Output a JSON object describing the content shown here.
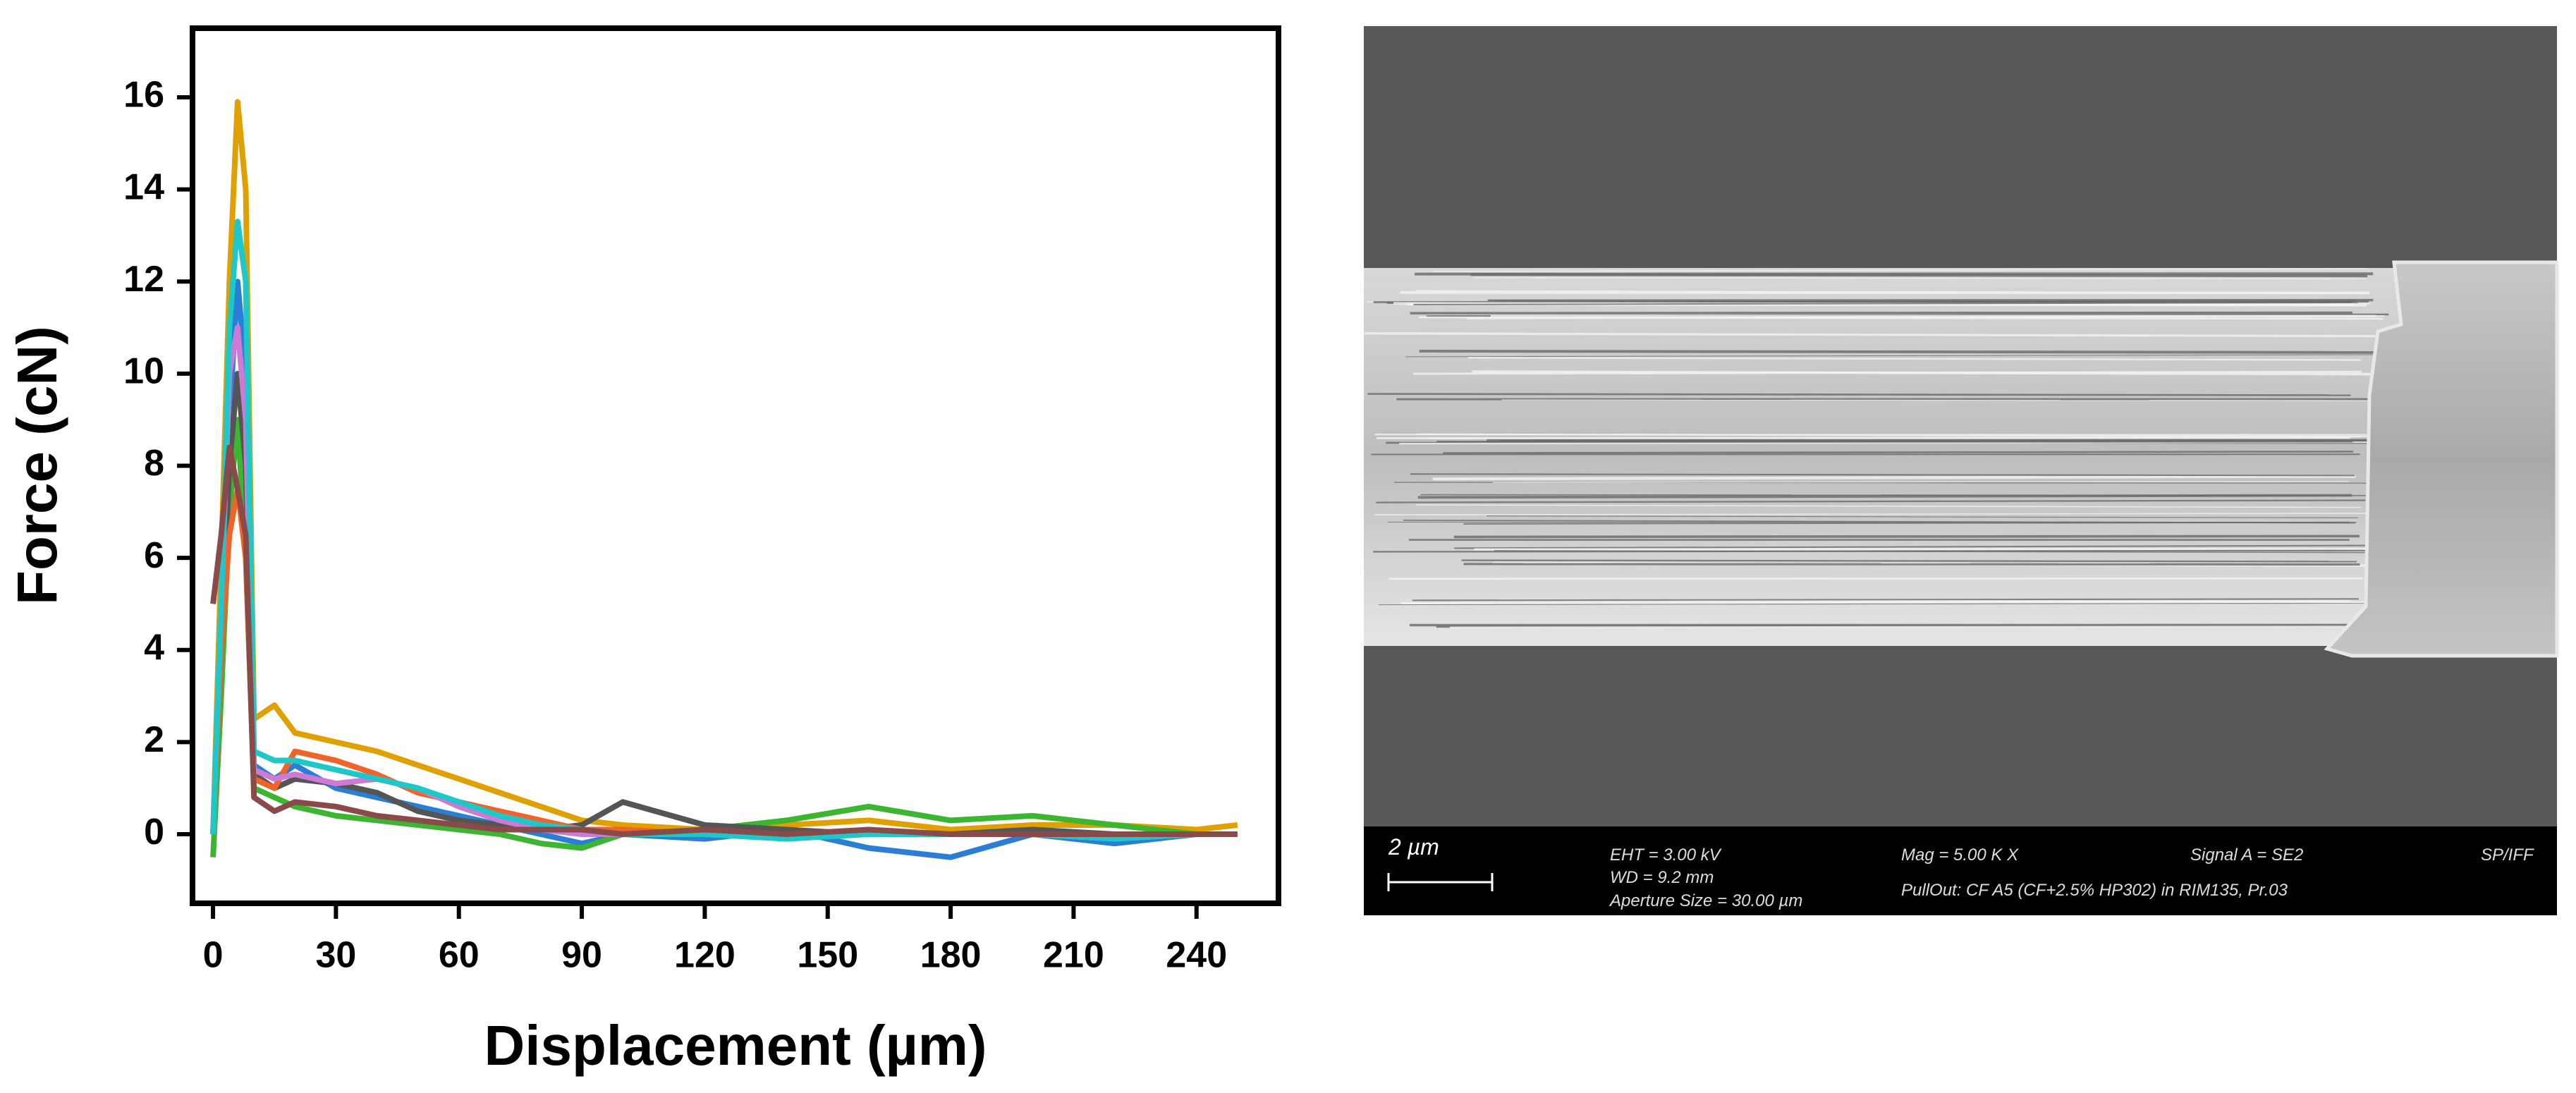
{
  "chart_data": {
    "type": "line",
    "xlabel": "Displacement (µm)",
    "ylabel": "Force (cN)",
    "x": [
      0,
      2,
      4,
      6,
      8,
      10,
      15,
      20,
      30,
      40,
      50,
      60,
      70,
      80,
      90,
      100,
      120,
      140,
      160,
      180,
      200,
      220,
      240,
      250
    ],
    "series": [
      {
        "color": "#e0a000",
        "values": [
          0,
          6,
          12,
          15.9,
          14,
          2.5,
          2.8,
          2.2,
          2.0,
          1.8,
          1.5,
          1.2,
          0.9,
          0.6,
          0.3,
          0.2,
          0.1,
          0.2,
          0.3,
          0.1,
          0.2,
          0.2,
          0.1,
          0.2
        ]
      },
      {
        "color": "#2a7fd4",
        "values": [
          0,
          4,
          9,
          12,
          10,
          1.5,
          1.2,
          1.5,
          1.0,
          0.8,
          0.6,
          0.4,
          0.2,
          0,
          -0.2,
          0,
          -0.1,
          0.1,
          -0.3,
          -0.5,
          0,
          -0.2,
          0,
          0
        ]
      },
      {
        "color": "#3cb531",
        "values": [
          -0.5,
          3,
          7,
          9,
          6,
          1.0,
          0.8,
          0.6,
          0.4,
          0.3,
          0.2,
          0.1,
          0,
          -0.2,
          -0.3,
          0,
          0.1,
          0.3,
          0.6,
          0.3,
          0.4,
          0.2,
          0,
          0
        ]
      },
      {
        "color": "#555555",
        "values": [
          0,
          4,
          8,
          10,
          8,
          1.3,
          1.0,
          1.2,
          1.1,
          0.9,
          0.5,
          0.3,
          0.2,
          0.1,
          0.2,
          0.7,
          0.2,
          0.1,
          0,
          0,
          0.1,
          0,
          0,
          0
        ]
      },
      {
        "color": "#f0642a",
        "values": [
          0,
          4,
          6.5,
          7.5,
          6,
          1.2,
          1.0,
          1.8,
          1.6,
          1.3,
          0.9,
          0.7,
          0.5,
          0.3,
          0.1,
          0.1,
          0,
          0,
          0,
          0,
          0,
          0,
          0,
          0
        ]
      },
      {
        "color": "#cc7ad6",
        "values": [
          0,
          5,
          10,
          11,
          9,
          1.4,
          1.2,
          1.3,
          1.1,
          1.2,
          1.0,
          0.6,
          0.3,
          0.1,
          0,
          0,
          0,
          0,
          0,
          0,
          0,
          0,
          0,
          0
        ]
      },
      {
        "color": "#1ec8c8",
        "values": [
          0,
          5,
          11,
          13.3,
          12,
          1.8,
          1.6,
          1.6,
          1.4,
          1.2,
          1.0,
          0.7,
          0.4,
          0.2,
          0.1,
          0,
          0,
          -0.1,
          0,
          0,
          0,
          -0.1,
          0,
          0
        ]
      },
      {
        "color": "#8b4a4a",
        "values": [
          5,
          6.5,
          8.4,
          7.5,
          6.5,
          0.8,
          0.5,
          0.7,
          0.6,
          0.4,
          0.3,
          0.2,
          0.1,
          0.1,
          0.1,
          0,
          0.1,
          0,
          0.1,
          0,
          0,
          0,
          0,
          0
        ]
      }
    ],
    "xlim": [
      -5,
      260
    ],
    "ylim": [
      -1.5,
      17.5
    ],
    "xticks": [
      0,
      30,
      60,
      90,
      120,
      150,
      180,
      210,
      240
    ],
    "yticks": [
      0,
      2,
      4,
      6,
      8,
      10,
      12,
      14,
      16
    ],
    "grid": false
  },
  "sem_image": {
    "scale_bar": "2 µm",
    "eht": "EHT =  3.00 kV",
    "wd": "WD =  9.2 mm",
    "aperture": "Aperture Size = 30.00 µm",
    "mag": "Mag =    5.00 K X",
    "sample": "PullOut:  CF A5  (CF+2.5% HP302)  in RIM135, Pr.03",
    "signal": "Signal A = SE2",
    "logo": "SP/IFF"
  }
}
